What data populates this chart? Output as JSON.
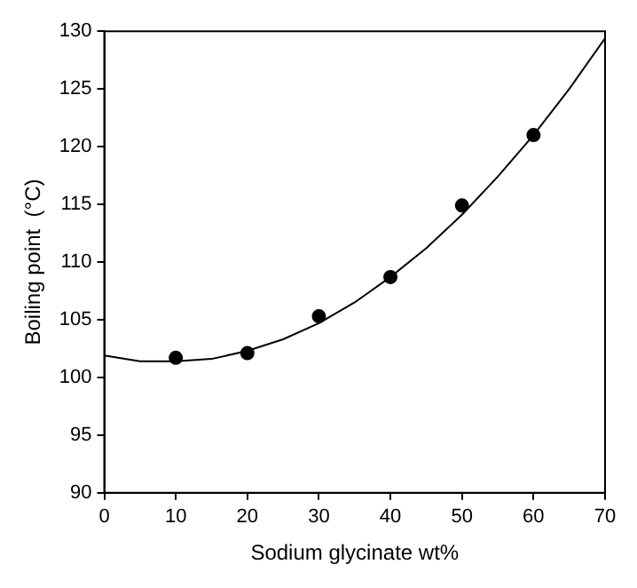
{
  "chart_data": {
    "type": "scatter",
    "xlabel": "Sodium glycinate wt%",
    "ylabel": "Boiling point  (°C)",
    "xlim": [
      0,
      70
    ],
    "xticks": [
      0,
      10,
      20,
      30,
      40,
      50,
      60,
      70
    ],
    "ylim": [
      90,
      130
    ],
    "yticks": [
      90,
      95,
      100,
      105,
      110,
      115,
      120,
      125,
      130
    ],
    "grid": false,
    "legend": false,
    "series": [
      {
        "color": "#000000",
        "marker": "circle",
        "x": [
          10,
          20,
          30,
          40,
          50,
          60
        ],
        "values": [
          101.7,
          102.1,
          105.3,
          108.7,
          114.9,
          121.0
        ]
      },
      {
        "type": "line",
        "color": "#000000",
        "marker": "none",
        "x": [
          0,
          5,
          10,
          15,
          20,
          25,
          30,
          35,
          40,
          45,
          50,
          55,
          60,
          65,
          70
        ],
        "values": [
          101.9,
          101.4,
          101.4,
          101.6,
          102.3,
          103.3,
          104.7,
          106.5,
          108.7,
          111.2,
          114.1,
          117.4,
          121.0,
          125.0,
          129.4
        ]
      }
    ]
  }
}
